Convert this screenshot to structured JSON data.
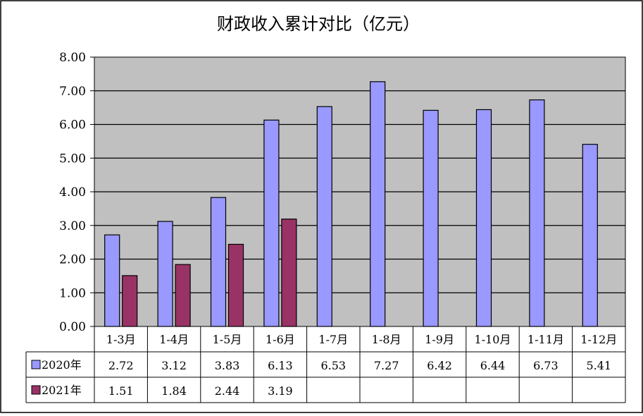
{
  "chart_data": {
    "type": "bar",
    "title": "财政收入累计对比（亿元）",
    "categories": [
      "1-3月",
      "1-4月",
      "1-5月",
      "1-6月",
      "1-7月",
      "1-8月",
      "1-9月",
      "1-10月",
      "1-11月",
      "1-12月"
    ],
    "series": [
      {
        "name": "2020年",
        "values": [
          2.72,
          3.12,
          3.83,
          6.13,
          6.53,
          7.27,
          6.42,
          6.44,
          6.73,
          5.41
        ],
        "labels": [
          "2.72",
          "3.12",
          "3.83",
          "6.13",
          "6.53",
          "7.27",
          "6.42",
          "6.44",
          "6.73",
          "5.41"
        ],
        "color": "#9999ff"
      },
      {
        "name": "2021年",
        "values": [
          1.51,
          1.84,
          2.44,
          3.19,
          null,
          null,
          null,
          null,
          null,
          null
        ],
        "labels": [
          "1.51",
          "1.84",
          "2.44",
          "3.19",
          "",
          "",
          "",
          "",
          "",
          ""
        ],
        "color": "#993366"
      }
    ],
    "ylim": [
      0,
      8
    ],
    "yticks": [
      "0.00",
      "1.00",
      "2.00",
      "3.00",
      "4.00",
      "5.00",
      "6.00",
      "7.00",
      "8.00"
    ],
    "grid": true,
    "plot_background": "#c0c0c0",
    "legend": "data-table"
  }
}
